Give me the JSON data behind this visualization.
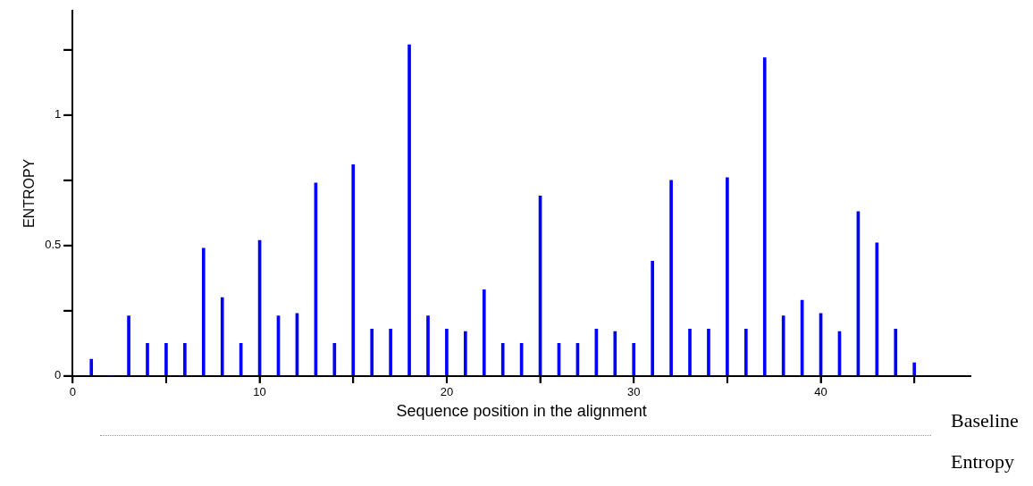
{
  "chart_data": {
    "type": "bar",
    "xlabel": "Sequence position in the alignment",
    "ylabel": "ENTROPY",
    "x": [
      1,
      2,
      3,
      4,
      5,
      6,
      7,
      8,
      9,
      10,
      11,
      12,
      13,
      14,
      15,
      16,
      17,
      18,
      19,
      20,
      21,
      22,
      23,
      24,
      25,
      26,
      27,
      28,
      29,
      30,
      31,
      32,
      33,
      34,
      35,
      36,
      37,
      38,
      39,
      40,
      41,
      42,
      43,
      44,
      45
    ],
    "values": [
      0.064,
      0,
      0.23,
      0.125,
      0.125,
      0.125,
      0.49,
      0.3,
      0.125,
      0.52,
      0.23,
      0.24,
      0.74,
      0.125,
      0.81,
      0.18,
      0.18,
      1.27,
      0.23,
      0.18,
      0.17,
      0.33,
      0.125,
      0.125,
      0.69,
      0.125,
      0.125,
      0.18,
      0.17,
      0.125,
      0.44,
      0.75,
      0.18,
      0.18,
      0.76,
      0.18,
      1.22,
      0.23,
      0.29,
      0.24,
      0.17,
      0.63,
      0.51,
      0.18,
      0.05
    ],
    "color": "#0000ff",
    "xlim": [
      0,
      48
    ],
    "xticks": [
      0,
      {
        "value": 5,
        "label": null
      },
      10,
      {
        "value": 15,
        "label": null
      },
      20,
      {
        "value": 25,
        "label": null
      },
      30,
      {
        "value": 35,
        "label": null
      },
      40,
      {
        "value": 45,
        "label": null
      }
    ],
    "ylim": [
      0,
      1.4
    ],
    "yticks": [
      0,
      {
        "value": 0.25,
        "label": null
      },
      0.5,
      {
        "value": 0.75,
        "label": null
      },
      1,
      {
        "value": 1.25,
        "label": null
      }
    ],
    "grid": false,
    "legend": false,
    "annotations": [
      "Baseline Entropy"
    ]
  }
}
